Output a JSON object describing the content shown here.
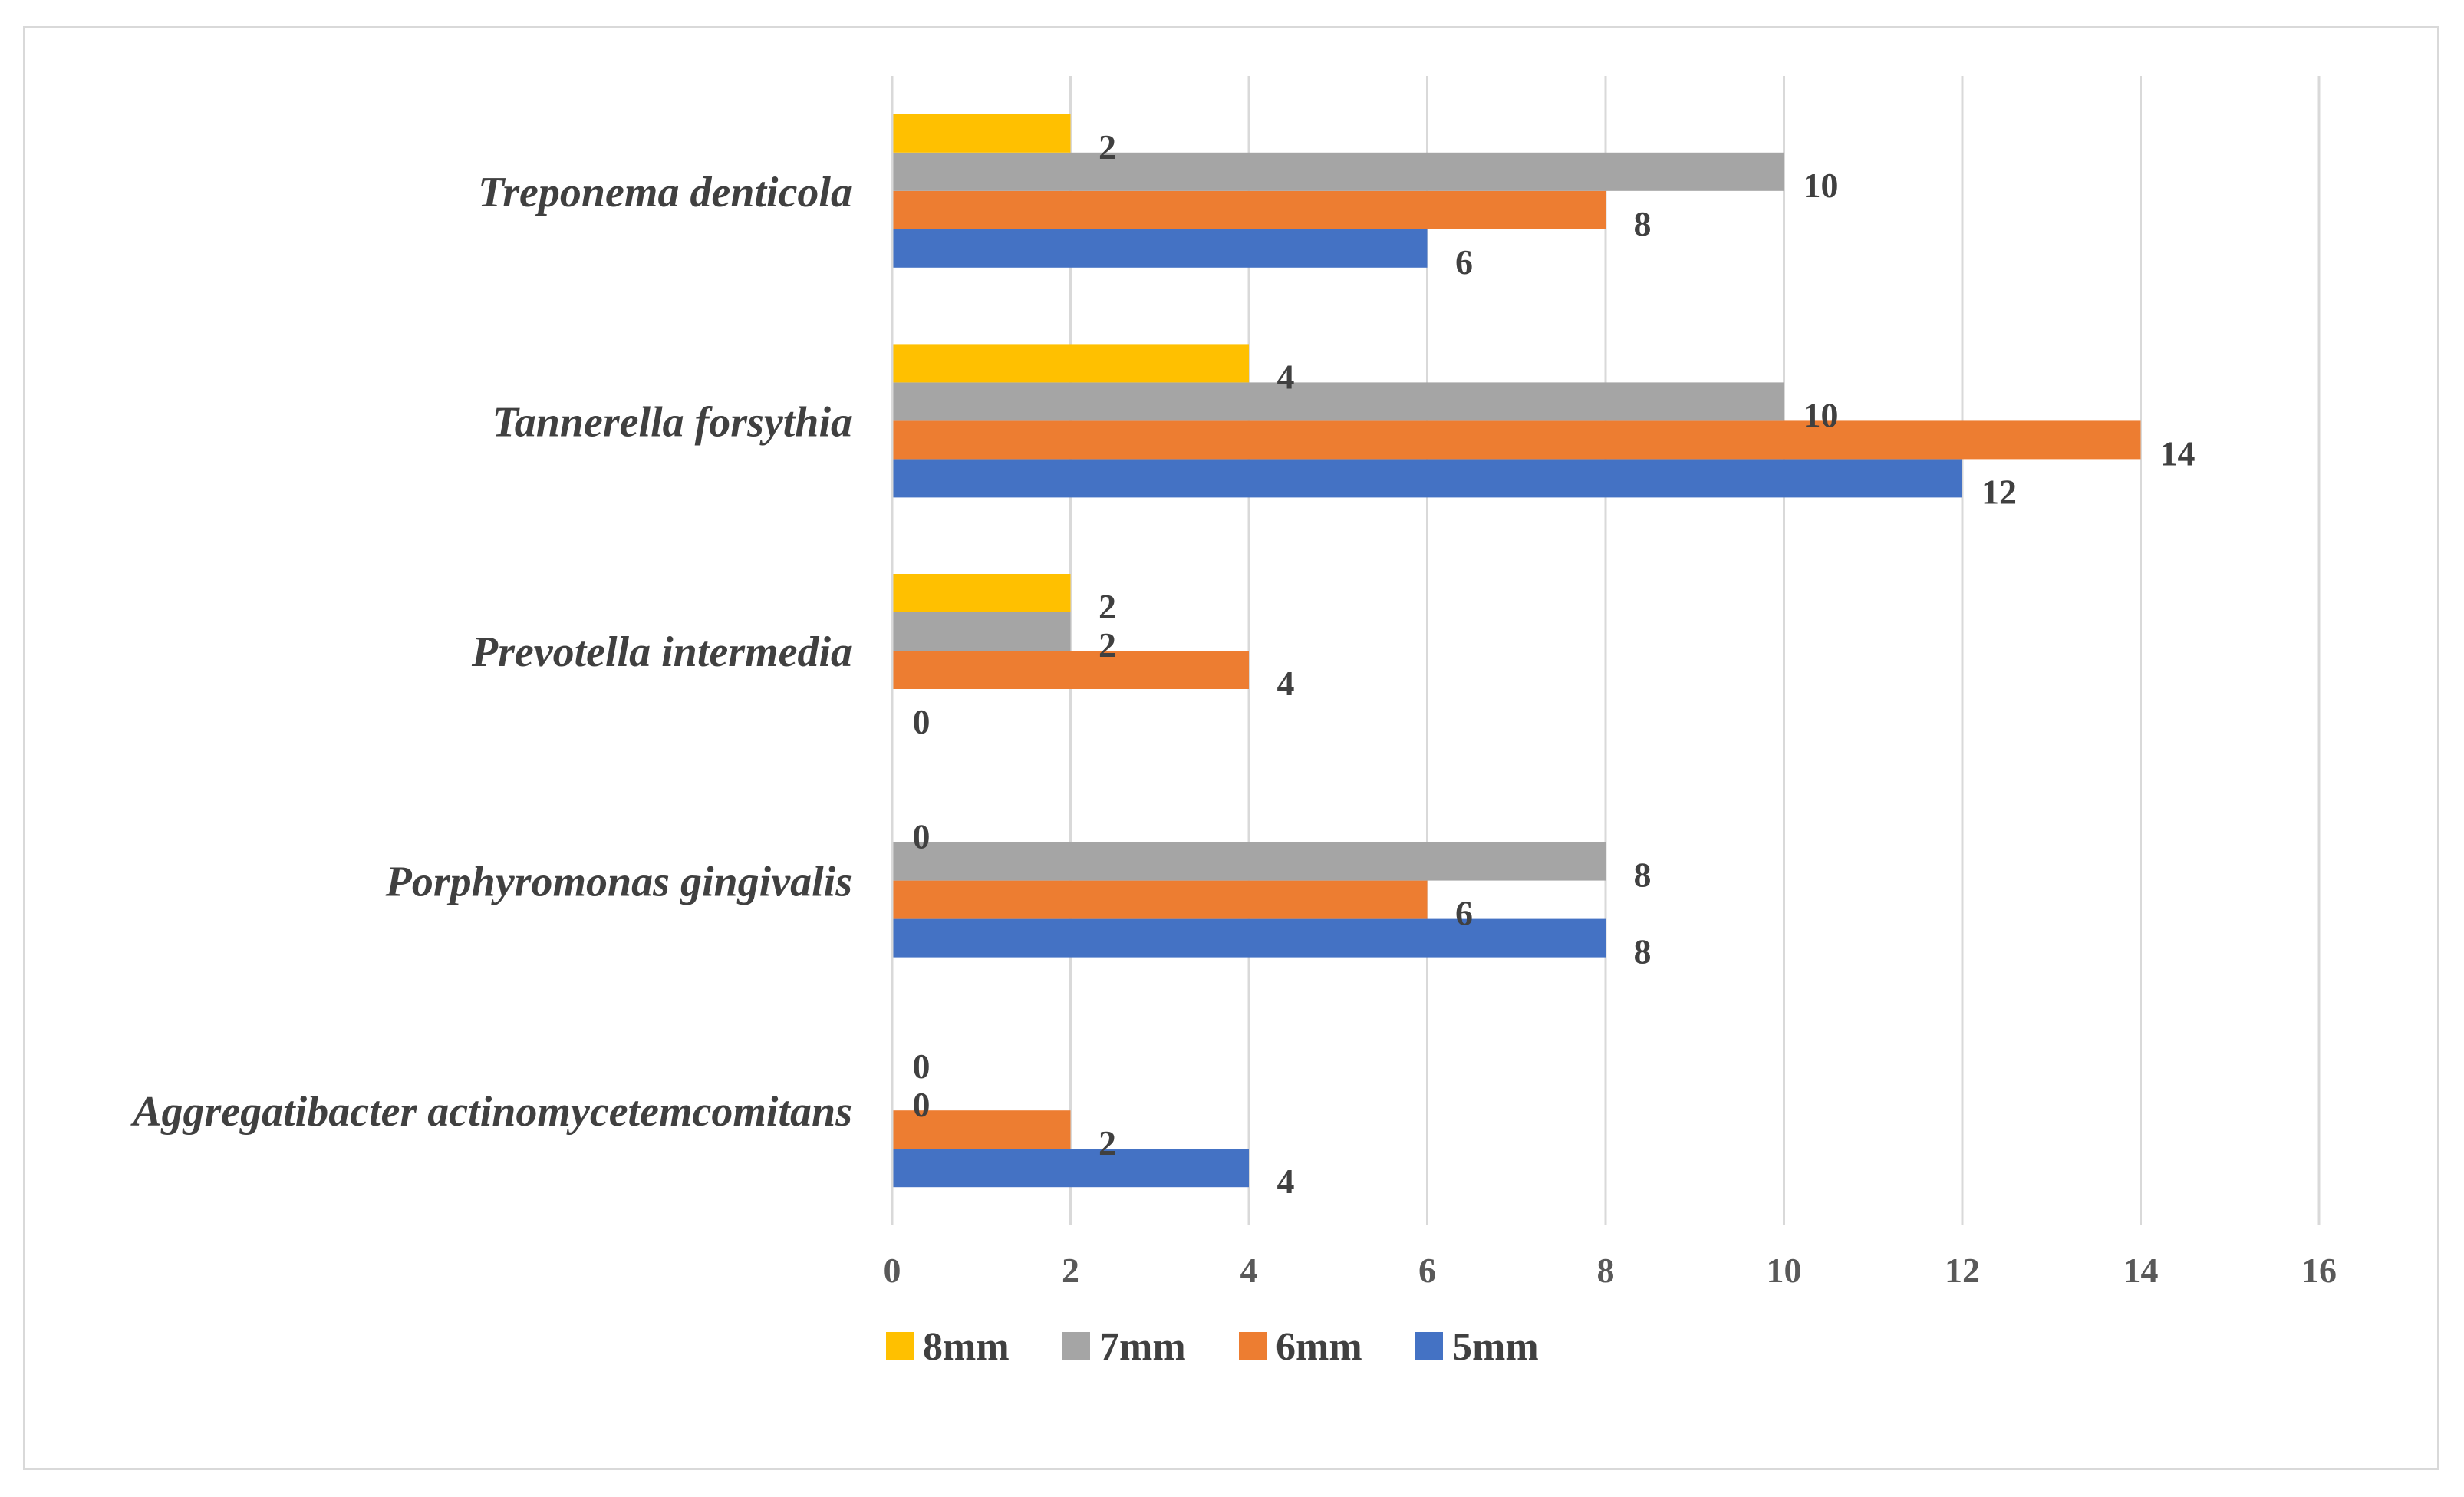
{
  "chart_data": {
    "type": "bar",
    "orientation": "horizontal",
    "title": "",
    "xlabel": "",
    "ylabel": "",
    "xlim": [
      0,
      16
    ],
    "x_ticks": [
      0,
      2,
      4,
      6,
      8,
      10,
      12,
      14,
      16
    ],
    "grid": true,
    "legend_position": "bottom",
    "categories": [
      "Aggregatibacter actinomycetemcomitans",
      "Porphyromonas gingivalis",
      "Prevotella intermedia",
      "Tannerella forsythia",
      "Treponema denticola"
    ],
    "series": [
      {
        "name": "5mm",
        "color": "#4472c4",
        "values": [
          4,
          8,
          0,
          12,
          6
        ]
      },
      {
        "name": "6mm",
        "color": "#ed7d31",
        "values": [
          2,
          6,
          4,
          14,
          8
        ]
      },
      {
        "name": "7mm",
        "color": "#a5a5a5",
        "values": [
          0,
          8,
          2,
          10,
          10
        ]
      },
      {
        "name": "8mm",
        "color": "#ffc000",
        "values": [
          0,
          0,
          2,
          4,
          2
        ]
      }
    ],
    "legend_order": [
      "8mm",
      "7mm",
      "6mm",
      "5mm"
    ]
  },
  "colors": {
    "gridline": "#d9d9d9",
    "frame": "#d9d9d9"
  }
}
